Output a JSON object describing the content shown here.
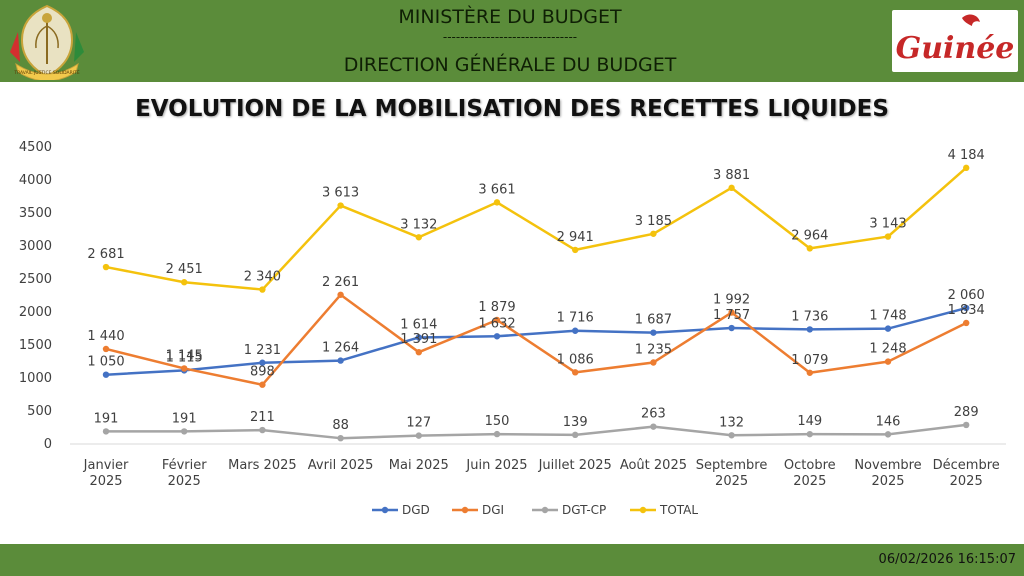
{
  "header": {
    "ministry": "MINISTÈRE DU BUDGET",
    "separator": "-------------------------------",
    "direction": "DIRECTION GÉNÉRALE DU BUDGET",
    "emblem_text": "TRAVAIL  JUSTICE  SOLIDARITÉ",
    "brand_logo": "Guinée"
  },
  "footer": {
    "timestamp": "06/02/2026 16:15:07"
  },
  "colors": {
    "header_green": "#5b8c3a",
    "DGD": "#4472c4",
    "DGI": "#ed7d31",
    "DGT-CP": "#a5a5a5",
    "TOTAL": "#f4c20d"
  },
  "chart_data": {
    "type": "line",
    "title": "EVOLUTION DE LA MOBILISATION DES RECETTES LIQUIDES",
    "categories": [
      [
        "Janvier",
        "2025"
      ],
      [
        "Février",
        "2025"
      ],
      [
        "Mars 2025"
      ],
      [
        "Avril 2025"
      ],
      [
        "Mai 2025"
      ],
      [
        "Juin 2025"
      ],
      [
        "Juillet 2025"
      ],
      [
        "Août 2025"
      ],
      [
        "Septembre",
        "2025"
      ],
      [
        "Octobre",
        "2025"
      ],
      [
        "Novembre",
        "2025"
      ],
      [
        "Décembre",
        "2025"
      ]
    ],
    "ylim": [
      0,
      4500
    ],
    "yticks": [
      0,
      500,
      1000,
      1500,
      2000,
      2500,
      3000,
      3500,
      4000,
      4500
    ],
    "ytick_labels": [
      "0",
      "500",
      "1000",
      "1500",
      "2000",
      "2500",
      "3000",
      "3500",
      "4000",
      "4500"
    ],
    "series": [
      {
        "name": "DGD",
        "values": [
          1050,
          1115,
          1231,
          1264,
          1614,
          1632,
          1716,
          1687,
          1757,
          1736,
          1748,
          2060
        ],
        "labels": [
          "1 050",
          "1 115",
          "1 231",
          "1 264",
          "1 614",
          "1 632",
          "1 716",
          "1 687",
          "1 757",
          "1 736",
          "1 748",
          "2 060"
        ]
      },
      {
        "name": "DGI",
        "values": [
          1440,
          1145,
          898,
          2261,
          1391,
          1879,
          1086,
          1235,
          1992,
          1079,
          1248,
          1834
        ],
        "labels": [
          "1 440",
          "1 145",
          "898",
          "2 261",
          "1 391",
          "1 879",
          "1 086",
          "1 235",
          "1 992",
          "1 079",
          "1 248",
          "1 834"
        ]
      },
      {
        "name": "DGT-CP",
        "values": [
          191,
          191,
          211,
          88,
          127,
          150,
          139,
          263,
          132,
          149,
          146,
          289
        ],
        "labels": [
          "191",
          "191",
          "211",
          "88",
          "127",
          "150",
          "139",
          "263",
          "132",
          "149",
          "146",
          "289"
        ]
      },
      {
        "name": "TOTAL",
        "values": [
          2681,
          2451,
          2340,
          3613,
          3132,
          3661,
          2941,
          3185,
          3881,
          2964,
          3143,
          4184
        ],
        "labels": [
          "2 681",
          "2 451",
          "2 340",
          "3 613",
          "3 132",
          "3 661",
          "2 941",
          "3 185",
          "3 881",
          "2 964",
          "3 143",
          "4 184"
        ]
      }
    ],
    "legend": [
      "DGD",
      "DGI",
      "DGT-CP",
      "TOTAL"
    ],
    "legend_position": "bottom",
    "grid": false
  }
}
